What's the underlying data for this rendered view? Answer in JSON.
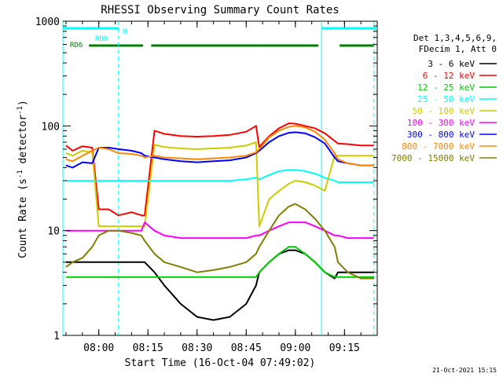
{
  "chart_data": {
    "type": "line",
    "title": "RHESSI Observing Summary Count Rates",
    "xlabel": "Start Time (16-Oct-04 07:49:02)",
    "ylabel": "Count Rate (s⁻¹ detector⁻¹)",
    "ylabel_parts": [
      "Count Rate (s",
      "-1",
      " detector",
      "-1",
      ")"
    ],
    "yscale": "log",
    "xlim": [
      "07:49:02",
      "09:25:00"
    ],
    "ylim": [
      1,
      1000
    ],
    "x_ticks": [
      "08:00",
      "08:15",
      "08:30",
      "08:45",
      "09:00",
      "09:15"
    ],
    "y_ticks": [
      {
        "value": 1,
        "label": "1"
      },
      {
        "value": 10,
        "label": "10"
      },
      {
        "value": 100,
        "label": "100"
      },
      {
        "value": 1000,
        "label": "1000"
      }
    ],
    "legend_placement": "right",
    "legend_header": [
      "Det 1,3,4,5,6,9,",
      "FDecim 1, Att 0"
    ],
    "footer_date": "21-Oct-2021 15:15",
    "flags": [
      {
        "label": "RD0",
        "color": "#00ffff",
        "segments": [
          [
            "07:49:02",
            "08:06:00"
          ],
          [
            "09:08:00",
            "09:25:00"
          ]
        ]
      },
      {
        "label": "N",
        "color": "#00ffff",
        "segments": []
      },
      {
        "label": "RD6",
        "color": "#008000",
        "segments": [
          [
            "07:57:00",
            "08:13:30"
          ],
          [
            "08:16:00",
            "08:49:00"
          ],
          [
            "08:49:00",
            "09:07:00"
          ],
          [
            "09:13:30",
            "09:24:00"
          ]
        ]
      }
    ],
    "markers": [
      {
        "x": "07:49:02",
        "style": "solid",
        "color": "#00ffff"
      },
      {
        "x": "08:06:00",
        "style": "dashed",
        "color": "#00ffff"
      },
      {
        "x": "09:08:00",
        "style": "solid",
        "color": "#00ffff"
      },
      {
        "x": "09:24:00",
        "style": "dashed",
        "color": "#00ffff"
      }
    ],
    "x_times": [
      "07:50",
      "07:52",
      "07:55",
      "07:58",
      "08:00",
      "08:03",
      "08:06",
      "08:10",
      "08:13",
      "08:14",
      "08:17",
      "08:20",
      "08:25",
      "08:30",
      "08:35",
      "08:40",
      "08:45",
      "08:48",
      "08:49",
      "08:52",
      "08:55",
      "08:58",
      "09:00",
      "09:03",
      "09:06",
      "09:09",
      "09:12",
      "09:13",
      "09:16",
      "09:20",
      "09:24"
    ],
    "series": [
      {
        "name": "3 - 6 keV",
        "color": "#000000",
        "values": [
          5,
          5,
          5,
          5,
          5,
          5,
          5,
          5,
          5,
          5,
          4,
          3,
          2,
          1.5,
          1.4,
          1.5,
          2,
          3,
          4,
          5,
          6,
          6.5,
          6.5,
          6,
          5,
          4,
          3.5,
          4,
          4,
          4,
          4
        ]
      },
      {
        "name": "6 - 12 keV",
        "color": "#ff0000",
        "values": [
          65,
          58,
          64,
          62,
          16,
          16,
          14,
          15,
          14,
          14,
          90,
          84,
          80,
          79,
          80,
          82,
          88,
          100,
          63,
          80,
          95,
          106,
          105,
          100,
          95,
          85,
          72,
          68,
          67,
          65,
          65
        ]
      },
      {
        "name": "12 - 25 keV",
        "color": "#00cc00",
        "values": [
          3.6,
          3.6,
          3.6,
          3.6,
          3.6,
          3.6,
          3.6,
          3.6,
          3.6,
          3.6,
          3.6,
          3.6,
          3.6,
          3.6,
          3.6,
          3.6,
          3.6,
          3.6,
          4,
          5,
          6,
          7,
          7,
          6,
          5,
          4,
          3.6,
          3.6,
          3.6,
          3.6,
          3.6
        ]
      },
      {
        "name": "25 - 50 keV",
        "color": "#00ffff",
        "values": [
          30,
          30,
          30,
          30,
          30,
          30,
          30,
          30,
          30,
          30,
          30,
          30,
          30,
          30,
          30,
          30,
          31,
          32,
          31,
          34,
          37,
          38,
          38,
          37,
          35,
          32,
          30,
          29,
          29,
          29,
          29
        ]
      },
      {
        "name": "50 - 100 keV",
        "color": "#cccc00",
        "values": [
          55,
          52,
          58,
          56,
          11,
          11,
          11,
          11,
          11,
          11,
          66,
          63,
          61,
          60,
          61,
          62,
          65,
          70,
          11,
          20,
          24,
          28,
          30,
          29,
          27,
          24,
          52,
          52,
          52,
          52,
          52
        ]
      },
      {
        "name": "100 - 300 keV",
        "color": "#ff00ff",
        "values": [
          10,
          10,
          10,
          10,
          10,
          10,
          10,
          10,
          10,
          12,
          10,
          9,
          8.5,
          8.5,
          8.5,
          8.5,
          8.5,
          9,
          9,
          10,
          11,
          12,
          12,
          12,
          11,
          10,
          9,
          9,
          8.5,
          8.5,
          8.5
        ]
      },
      {
        "name": "300 - 800 keV",
        "color": "#0000ff",
        "values": [
          42,
          40,
          45,
          44,
          62,
          62,
          60,
          58,
          55,
          52,
          50,
          48,
          46,
          45,
          46,
          47,
          50,
          55,
          58,
          70,
          80,
          86,
          87,
          85,
          78,
          68,
          50,
          46,
          44,
          42,
          42
        ]
      },
      {
        "name": "800 - 7000 keV",
        "color": "#ff8800",
        "values": [
          48,
          46,
          52,
          58,
          62,
          60,
          55,
          54,
          52,
          50,
          52,
          50,
          49,
          48,
          49,
          50,
          52,
          56,
          60,
          78,
          90,
          98,
          100,
          97,
          88,
          74,
          55,
          48,
          44,
          42,
          42
        ]
      },
      {
        "name": "7000 - 15000 keV",
        "color": "#808000",
        "values": [
          4.5,
          5,
          5.5,
          7,
          9,
          10,
          10,
          9.5,
          9,
          8,
          6,
          5,
          4.5,
          4,
          4.2,
          4.5,
          5,
          6,
          7,
          10,
          14,
          17,
          18,
          16,
          13,
          10,
          7,
          5,
          4,
          3.5,
          3.5
        ]
      }
    ]
  }
}
